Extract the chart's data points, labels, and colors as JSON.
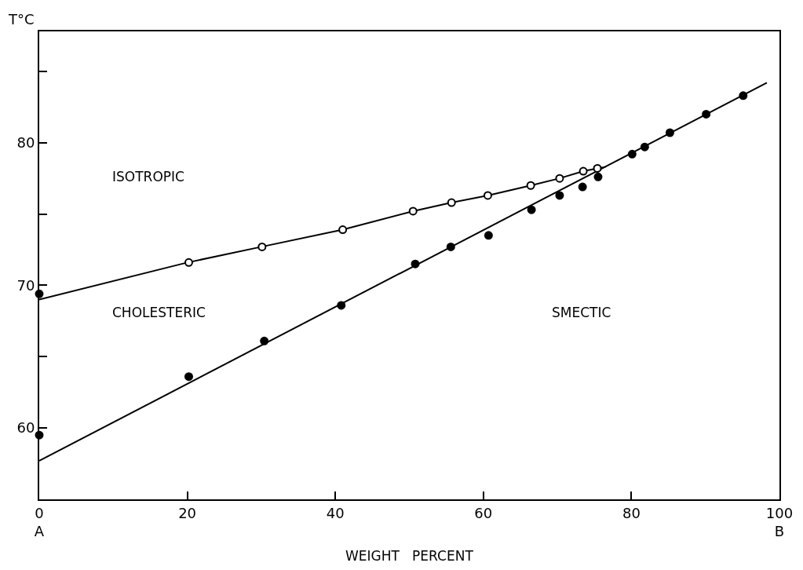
{
  "chart_data": {
    "type": "scatter",
    "xlabel": "WEIGHT   PERCENT",
    "ylabel": "T°C",
    "xlim": [
      0,
      100
    ],
    "ylim": [
      55,
      87.8
    ],
    "xticks": [
      {
        "value": 0,
        "label": "0\nA"
      },
      20,
      40,
      60,
      80,
      {
        "value": 100,
        "label": "100\nB"
      }
    ],
    "yticks": [
      60,
      {
        "value": 65,
        "label": null
      },
      70,
      {
        "value": 75,
        "label": null
      },
      80,
      {
        "value": 85,
        "label": null
      }
    ],
    "annotations": [
      "ISOTROPIC",
      "CHOLESTERIC",
      "SMECTIC"
    ],
    "series": [
      {
        "type": "line",
        "color": "#000000",
        "marker": "none",
        "line_style": "solid",
        "x": [
          0,
          20,
          30,
          41,
          50.5,
          55.7,
          60.6,
          66.4,
          70.3,
          73.5,
          75.4,
          76.5
        ],
        "values": [
          69.0,
          71.6,
          72.7,
          73.9,
          75.2,
          75.8,
          76.3,
          77.0,
          77.5,
          78.0,
          78.2,
          78.3
        ]
      },
      {
        "type": "line",
        "color": "#000000",
        "marker": "none",
        "line_style": "solid",
        "x": [
          0,
          98.3
        ],
        "values": [
          57.7,
          84.2
        ]
      },
      {
        "color": "#ffffff",
        "marker": "circle",
        "x": [
          20.2,
          30.1,
          41,
          50.5,
          55.7,
          60.6,
          66.4,
          70.3,
          73.5,
          75.4
        ],
        "values": [
          71.6,
          72.7,
          73.9,
          75.2,
          75.8,
          76.3,
          77.0,
          77.5,
          78.0,
          78.2
        ]
      },
      {
        "color": "#000000",
        "marker": "circle",
        "x": [
          0,
          0,
          20.2,
          30.4,
          40.8,
          50.8,
          55.6,
          60.7,
          66.5,
          70.3,
          73.4,
          75.5,
          80.1,
          81.8,
          85.2,
          90.1,
          95.1
        ],
        "values": [
          59.5,
          69.4,
          63.6,
          66.1,
          68.6,
          71.5,
          72.7,
          73.5,
          75.3,
          76.3,
          76.9,
          77.6,
          79.2,
          79.7,
          80.7,
          82.0,
          83.3
        ]
      }
    ]
  }
}
